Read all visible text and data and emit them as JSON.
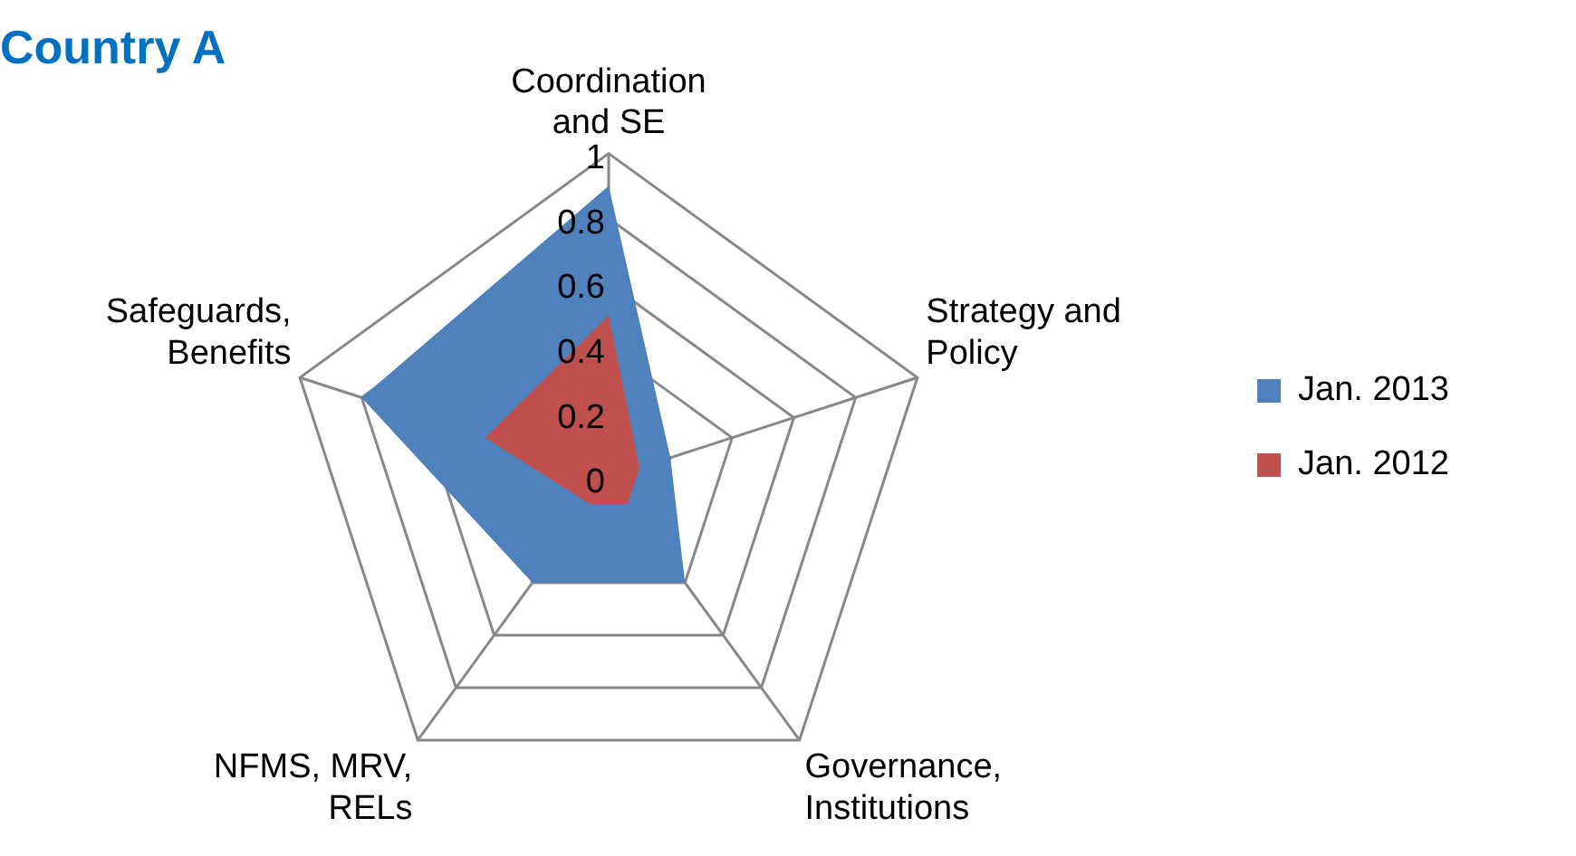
{
  "chart_data": {
    "type": "radar",
    "title": "Country A",
    "categories": [
      "Coordination and SE",
      "Strategy and Policy",
      "Governance, Institutions",
      "NFMS, MRV, RELs",
      "Safeguards, Benefits"
    ],
    "series": [
      {
        "name": "Jan. 2013",
        "color": "#4f81bd",
        "values": [
          0.9,
          0.2,
          0.4,
          0.4,
          0.8
        ]
      },
      {
        "name": "Jan. 2012",
        "color": "#c0504d",
        "values": [
          0.5,
          0.1,
          0.1,
          0.1,
          0.4
        ]
      }
    ],
    "ylim": [
      0,
      1
    ],
    "yticks": [
      0,
      0.2,
      0.4,
      0.6,
      0.8,
      1
    ],
    "grid": true,
    "legend": "right",
    "marker": "none"
  }
}
